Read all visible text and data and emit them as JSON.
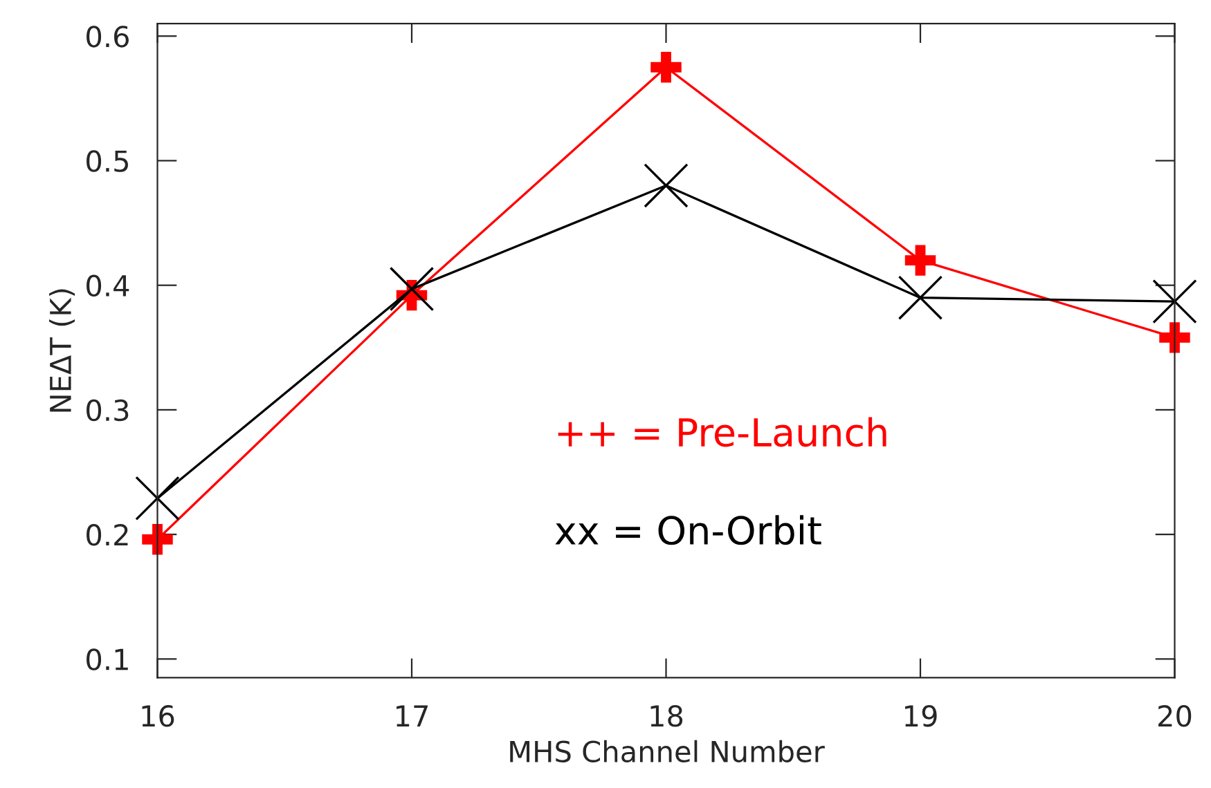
{
  "chart_data": {
    "type": "line",
    "xlabel": "MHS Channel Number",
    "ylabel": "NEΔT (K)",
    "x": [
      16,
      17,
      18,
      19,
      20
    ],
    "series": [
      {
        "name": "++ = Pre-Launch",
        "color": "#ff0000",
        "marker": "cross",
        "values": [
          0.196,
          0.392,
          0.575,
          0.42,
          0.358
        ]
      },
      {
        "name": "xx = On-Orbit",
        "color": "#000000",
        "marker": "cross",
        "values": [
          0.229,
          0.397,
          0.48,
          0.39,
          0.387
        ]
      }
    ],
    "xlim": [
      16,
      20
    ],
    "ylim": [
      0.085,
      0.61
    ],
    "xticks": [
      16,
      17,
      18,
      19,
      20
    ],
    "yticks": [
      0.1,
      0.2,
      0.3,
      0.4,
      0.5,
      0.6
    ],
    "grid": false,
    "legend": "center",
    "line_style": "solid"
  }
}
